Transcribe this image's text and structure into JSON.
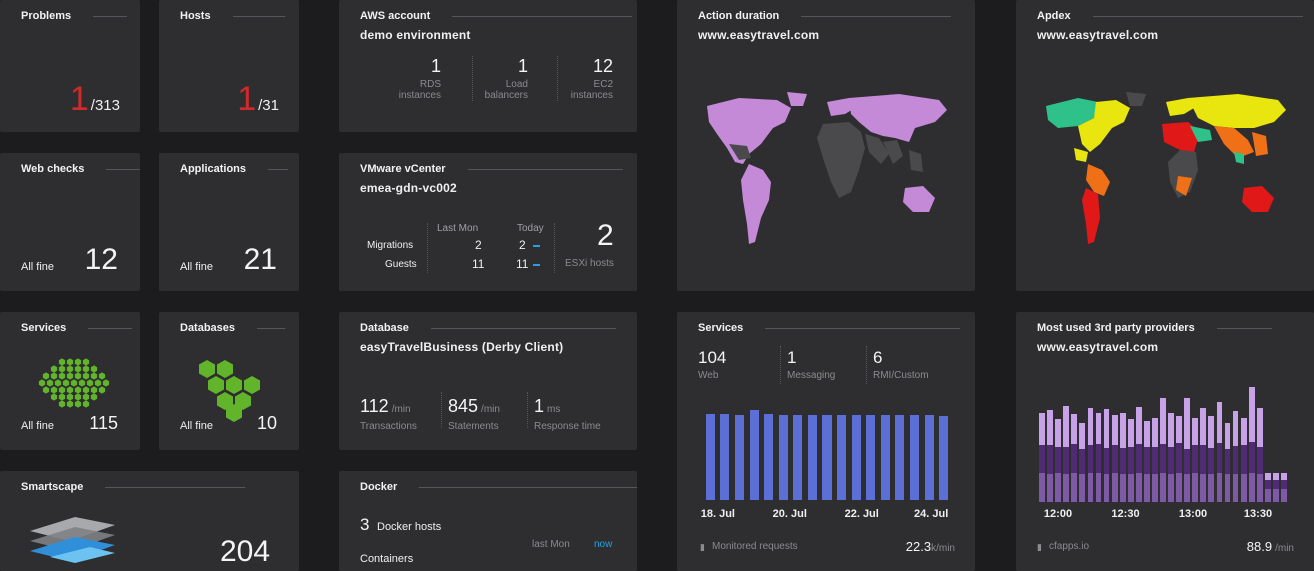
{
  "problems": {
    "title": "Problems",
    "count": "1",
    "total": "/313"
  },
  "hosts": {
    "title": "Hosts",
    "count": "1",
    "total": "/31"
  },
  "web_checks": {
    "title": "Web checks",
    "status": "All fine",
    "value": "12"
  },
  "applications": {
    "title": "Applications",
    "status": "All fine",
    "value": "21"
  },
  "services_small": {
    "title": "Services",
    "status": "All fine",
    "value": "115"
  },
  "databases": {
    "title": "Databases",
    "status": "All fine",
    "value": "10"
  },
  "smartscape": {
    "title": "Smartscape",
    "value": "204"
  },
  "aws": {
    "title": "AWS account",
    "subtitle": "demo environment",
    "stats": [
      {
        "value": "1",
        "label1": "RDS",
        "label2": "instances"
      },
      {
        "value": "1",
        "label1": "Load",
        "label2": "balancers"
      },
      {
        "value": "12",
        "label1": "EC2",
        "label2": "instances"
      }
    ]
  },
  "vmware": {
    "title": "VMware vCenter",
    "subtitle": "emea-gdn-vc002",
    "col_last_mon": "Last Mon",
    "col_today": "Today",
    "rows": [
      {
        "label": "Migrations",
        "last": "2",
        "today": "2"
      },
      {
        "label": "Guests",
        "last": "11",
        "today": "11"
      }
    ],
    "esxi_value": "2",
    "esxi_label": "ESXi hosts"
  },
  "database": {
    "title": "Database",
    "subtitle": "easyTravelBusiness (Derby Client)",
    "stats": [
      {
        "value": "112",
        "unit": "/min",
        "label": "Transactions"
      },
      {
        "value": "845",
        "unit": "/min",
        "label": "Statements"
      },
      {
        "value": "1",
        "unit": "ms",
        "label": "Response time"
      }
    ]
  },
  "docker": {
    "title": "Docker",
    "hosts_value": "3",
    "hosts_label": "Docker hosts",
    "containers_label": "Containers",
    "col_last_mon": "last Mon",
    "col_now": "now"
  },
  "action_duration": {
    "title": "Action duration",
    "subtitle": "www.easytravel.com"
  },
  "apdex": {
    "title": "Apdex",
    "subtitle": "www.easytravel.com"
  },
  "services_chart": {
    "title": "Services",
    "stats": [
      {
        "value": "104",
        "label": "Web"
      },
      {
        "value": "1",
        "label": "Messaging"
      },
      {
        "value": "6",
        "label": "RMI/Custom"
      }
    ],
    "footer_label": "Monitored requests",
    "footer_value": "22.3",
    "footer_unit": "k/min",
    "chart_data": {
      "type": "bar",
      "x_ticks": [
        "18. Jul",
        "20. Jul",
        "22. Jul",
        "24. Jul"
      ],
      "values": [
        0.96,
        0.96,
        0.94,
        1.0,
        0.96,
        0.95,
        0.94,
        0.95,
        0.94,
        0.95,
        0.95,
        0.94,
        0.95,
        0.94,
        0.94,
        0.94,
        0.93
      ],
      "color": "#5c6fd6"
    }
  },
  "third_party": {
    "title": "Most used 3rd party providers",
    "subtitle": "www.easytravel.com",
    "footer_label": "cfapps.io",
    "footer_value": "88.9",
    "footer_unit": "/min",
    "chart_data": {
      "type": "bar",
      "x_ticks": [
        "12:00",
        "12:30",
        "13:00",
        "13:30"
      ],
      "series": [
        {
          "values": [
            0.32,
            0.3,
            0.32,
            0.3,
            0.32,
            0.3,
            0.32,
            0.32,
            0.3,
            0.32,
            0.31,
            0.3,
            0.32,
            0.31,
            0.3,
            0.32,
            0.3,
            0.32,
            0.3,
            0.32,
            0.31,
            0.3,
            0.32,
            0.3,
            0.31,
            0.3,
            0.32,
            0.3,
            0.14,
            0.14,
            0.14
          ],
          "color": "#7e5aa6"
        },
        {
          "values": [
            0.3,
            0.32,
            0.28,
            0.3,
            0.31,
            0.28,
            0.3,
            0.31,
            0.29,
            0.3,
            0.28,
            0.3,
            0.31,
            0.29,
            0.3,
            0.31,
            0.3,
            0.32,
            0.28,
            0.3,
            0.31,
            0.29,
            0.32,
            0.28,
            0.3,
            0.32,
            0.33,
            0.3,
            0.1,
            0.1,
            0.1
          ],
          "color": "#4f2b74"
        },
        {
          "values": [
            0.35,
            0.38,
            0.3,
            0.45,
            0.33,
            0.28,
            0.4,
            0.34,
            0.42,
            0.33,
            0.38,
            0.3,
            0.4,
            0.28,
            0.32,
            0.5,
            0.37,
            0.3,
            0.55,
            0.3,
            0.4,
            0.35,
            0.45,
            0.28,
            0.38,
            0.3,
            0.6,
            0.42,
            0.08,
            0.08,
            0.08
          ],
          "color": "#c7a2e8"
        }
      ]
    }
  }
}
